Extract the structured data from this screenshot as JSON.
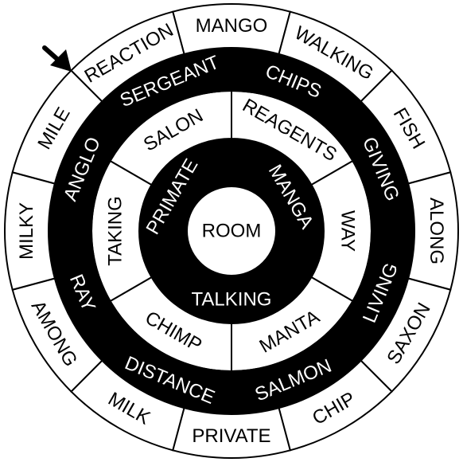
{
  "puzzle": {
    "center_word": "ROOM",
    "rings": [
      {
        "id": "ring1",
        "fill": "#000000",
        "text_color": "#ffffff",
        "words": [
          "PRIMATE",
          "MANGA",
          "TALKING"
        ]
      },
      {
        "id": "ring2",
        "fill": "#ffffff",
        "text_color": "#000000",
        "words": [
          "SALON",
          "REAGENTS",
          "WAY",
          "MANTA",
          "CHIMP",
          "TAKING"
        ]
      },
      {
        "id": "ring3",
        "fill": "#000000",
        "text_color": "#ffffff",
        "words": [
          "SERGEANT",
          "CHIPS",
          "GIVING",
          "LIVING",
          "SALMON",
          "DISTANCE",
          "RAY",
          "ANGLO"
        ]
      },
      {
        "id": "ring4",
        "fill": "#ffffff",
        "text_color": "#000000",
        "words": [
          "MANGO",
          "WALKING",
          "FISH",
          "ALONG",
          "SAXON",
          "CHIP",
          "PRIVATE",
          "MILK",
          "AMONG",
          "MILKY",
          "MILE",
          "REACTION"
        ]
      }
    ],
    "start_arrow": {
      "icon": "arrow-icon"
    }
  }
}
